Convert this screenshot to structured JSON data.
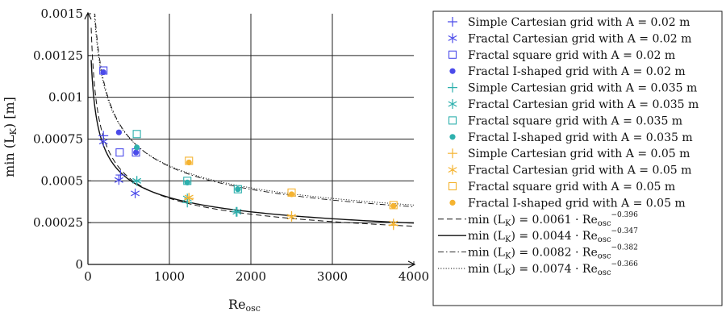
{
  "chart_data": {
    "type": "scatter",
    "xlabel": "Re",
    "xlabel_sub": "osc",
    "ylabel": "min (L",
    "ylabel_sub": "K",
    "ylabel_tail": ") [m]",
    "xlim": [
      0,
      4000
    ],
    "ylim": [
      0,
      0.0015
    ],
    "xticks": [
      0,
      1000,
      2000,
      3000,
      4000
    ],
    "xtick_labels": [
      "0",
      "1000",
      "2000",
      "3000",
      "4000"
    ],
    "yticks": [
      0,
      0.00025,
      0.0005,
      0.00075,
      0.001,
      0.00125,
      0.0015
    ],
    "ytick_labels": [
      "0",
      "0.00025",
      "0.0005",
      "0.00075",
      "0.001",
      "0.00125",
      "0.0015"
    ],
    "grid": true,
    "legend_placement": "right",
    "series": [
      {
        "name": "Simple Cartesian grid with A = 0.02 m",
        "color": "#4b4bea",
        "marker": "plus",
        "x": [
          190,
          400
        ],
        "y": [
          0.00077,
          0.000535
        ]
      },
      {
        "name": "Fractal Cartesian grid with A = 0.02 m",
        "color": "#4b4bea",
        "marker": "asterisk",
        "x": [
          190,
          380,
          580
        ],
        "y": [
          0.000735,
          0.000505,
          0.000425
        ]
      },
      {
        "name": "Fractal square grid with A = 0.02 m",
        "color": "#4b4bea",
        "marker": "square",
        "x": [
          190,
          390,
          590
        ],
        "y": [
          0.00116,
          0.00067,
          0.00067
        ]
      },
      {
        "name": "Fractal I-shaped grid with A = 0.02 m",
        "color": "#4b4bea",
        "marker": "dot",
        "x": [
          190,
          380,
          590
        ],
        "y": [
          0.00115,
          0.00079,
          0.00067
        ]
      },
      {
        "name": "Simple Cartesian grid with A = 0.035 m",
        "color": "#2eb0ad",
        "marker": "plus",
        "x": [
          600,
          1220,
          1820
        ],
        "y": [
          0.0005,
          0.00037,
          0.000315
        ]
      },
      {
        "name": "Fractal Cartesian grid with A = 0.035 m",
        "color": "#2eb0ad",
        "marker": "asterisk",
        "x": [
          600,
          1220,
          1830
        ],
        "y": [
          0.0005,
          0.000395,
          0.000315
        ]
      },
      {
        "name": "Fractal square grid with A = 0.035 m",
        "color": "#2eb0ad",
        "marker": "square",
        "x": [
          600,
          1220,
          1840
        ],
        "y": [
          0.00078,
          0.0005,
          0.00045
        ]
      },
      {
        "name": "Fractal I-shaped grid with A = 0.035 m",
        "color": "#2eb0ad",
        "marker": "dot",
        "x": [
          600,
          1220,
          1840
        ],
        "y": [
          0.0007,
          0.00049,
          0.00045
        ]
      },
      {
        "name": "Simple Cartesian grid with A = 0.05 m",
        "color": "#f5b330",
        "marker": "plus",
        "x": [
          1240,
          2500,
          3750
        ],
        "y": [
          0.000395,
          0.00029,
          0.000235
        ]
      },
      {
        "name": "Fractal Cartesian grid with A = 0.05 m",
        "color": "#f5b330",
        "marker": "asterisk",
        "x": [
          1240,
          2500,
          3750
        ],
        "y": [
          0.0004,
          0.000285,
          0.000245
        ]
      },
      {
        "name": "Fractal square grid with A = 0.05 m",
        "color": "#f5b330",
        "marker": "square",
        "x": [
          1240,
          2500,
          3750
        ],
        "y": [
          0.00062,
          0.00043,
          0.000355
        ]
      },
      {
        "name": "Fractal I-shaped grid with A = 0.05 m",
        "color": "#f5b330",
        "marker": "dot",
        "x": [
          1240,
          2500,
          3750
        ],
        "y": [
          0.00061,
          0.00042,
          0.00035
        ]
      }
    ],
    "fits": [
      {
        "coef": "0.0061",
        "c": 0.0061,
        "exp": -0.396,
        "exp_label": "−0.396",
        "style": "dashed"
      },
      {
        "coef": "0.0044",
        "c": 0.0044,
        "exp": -0.347,
        "exp_label": "−0.347",
        "style": "solid"
      },
      {
        "coef": "0.0082",
        "c": 0.0082,
        "exp": -0.382,
        "exp_label": "−0.382",
        "style": "dashdot"
      },
      {
        "coef": "0.0074",
        "c": 0.0074,
        "exp": -0.366,
        "exp_label": "−0.366",
        "style": "dotted"
      }
    ],
    "fit_label_prefix": "min (L",
    "fit_label_sub": "K",
    "fit_label_mid": ") = ",
    "fit_label_re": "Re",
    "fit_label_re_sub": "osc"
  }
}
